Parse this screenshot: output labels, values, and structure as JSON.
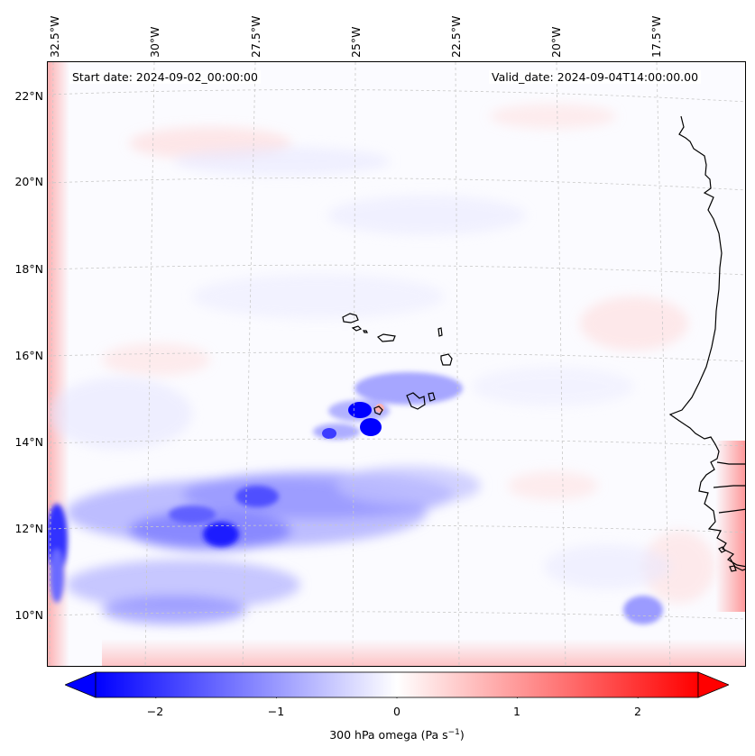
{
  "map": {
    "start_date": "Start date: 2024-09-02_00:00:00",
    "valid_date": "Valid_date: 2024-09-04T14:00:00.00",
    "lon_labels": [
      "32.5°W",
      "30°W",
      "27.5°W",
      "25°W",
      "22.5°W",
      "20°W",
      "17.5°W"
    ],
    "lat_labels": [
      "22°N",
      "20°N",
      "18°N",
      "16°N",
      "14°N",
      "12°N",
      "10°N"
    ],
    "lon_values": [
      -32.5,
      -30,
      -27.5,
      -25,
      -22.5,
      -20,
      -17.5
    ],
    "lat_values": [
      22,
      20,
      18,
      16,
      14,
      12,
      10
    ],
    "field": "300 hPa omega",
    "colormap": "bwr",
    "colors": {
      "negative": "#0000ff",
      "neutral": "#ffffff",
      "positive": "#ff0000",
      "coastline": "#000000",
      "gridline": "#c8c8c8"
    }
  },
  "colorbar": {
    "label": "300 hPa omega (Pa s",
    "label_sup": "−1",
    "label_close": ")",
    "ticks": [
      "−2",
      "−1",
      "0",
      "1",
      "2"
    ],
    "tick_values": [
      -2,
      -1,
      0,
      1,
      2
    ],
    "range": [
      -2.5,
      2.5
    ],
    "extend": "both"
  }
}
